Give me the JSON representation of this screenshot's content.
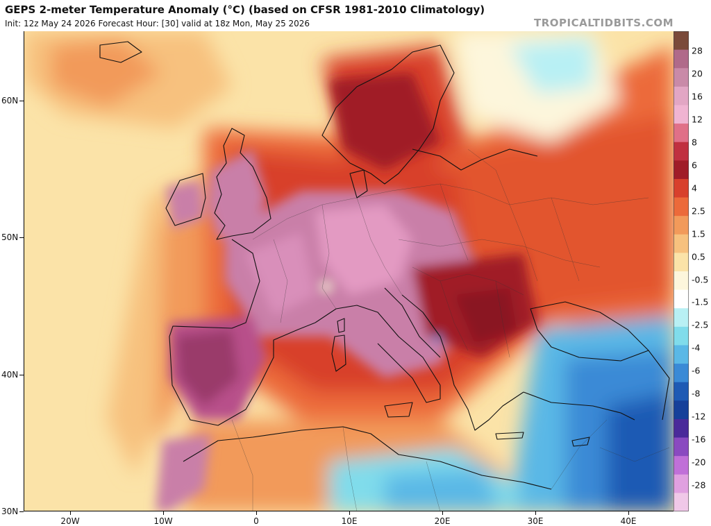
{
  "header": {
    "title": "GEPS 2-meter Temperature Anomaly (°C) (based on CFSR 1981-2010 Climatology)",
    "subtitle": "Init: 12z May 24 2026   Forecast Hour: [30]   valid at 18z Mon, May 25 2026",
    "brand": "TROPICALTIDBITS.COM"
  },
  "axes": {
    "lat_labels": [
      "60N",
      "50N",
      "40N",
      "30N"
    ],
    "lon_labels": [
      "20W",
      "10W",
      "0",
      "10E",
      "20E",
      "30E",
      "40E"
    ]
  },
  "colorbar": {
    "labels": [
      "28",
      "20",
      "16",
      "12",
      "8",
      "6",
      "4",
      "2.5",
      "1.5",
      "0.5",
      "-0.5",
      "-1.5",
      "-2.5",
      "-4",
      "-6",
      "-8",
      "-12",
      "-16",
      "-20",
      "-28"
    ],
    "colors": [
      "#7a4a3a",
      "#b06a8a",
      "#c98aa8",
      "#e2a6c4",
      "#f0b4d2",
      "#e07088",
      "#c03040",
      "#a01c28",
      "#d8402c",
      "#ec6a3a",
      "#f29a5a",
      "#f7c17e",
      "#fbe3a8",
      "#fdf6dc",
      "#ffffff",
      "#b8f0f4",
      "#80dceb",
      "#5ab8e6",
      "#3a8ad6",
      "#1e5ab4",
      "#16409a",
      "#4a2a9a",
      "#8a4ac0",
      "#c070d8",
      "#e0a0e0",
      "#f0c8e8"
    ]
  },
  "map": {
    "colors": {
      "ocean_base": "#f8e2a6",
      "warm_light": "#f7c17e",
      "warm_med": "#ec6a3a",
      "warm_strong": "#d8402c",
      "warm_dark": "#a01c28",
      "hot_pink": "#c97fa8",
      "hot_pink_light": "#e39ac2",
      "cool_light": "#80dceb",
      "cool_med": "#5ab8e6",
      "cool_strong": "#3a8ad6",
      "cool_dark": "#1e5ab4"
    }
  }
}
